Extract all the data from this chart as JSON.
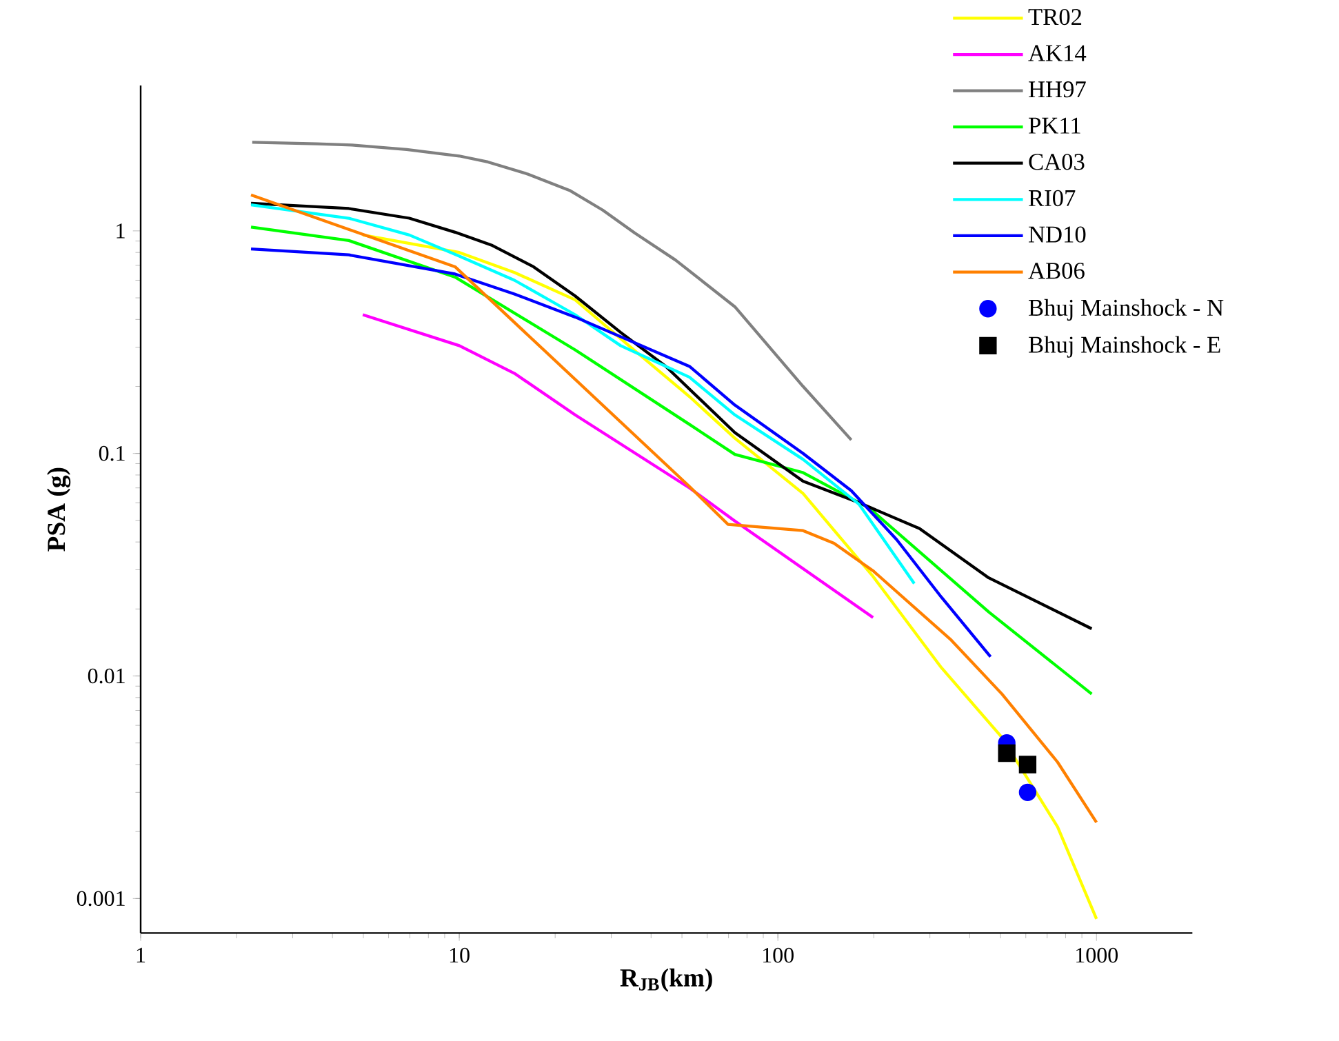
{
  "chart_data": {
    "type": "line",
    "xlabel": "R$_{JB}$(km)",
    "ylabel": "PSA (g)",
    "log": "xy",
    "xlim": [
      1,
      2000
    ],
    "ylim": [
      0.0007,
      4.5
    ],
    "xticks": [
      1,
      10,
      100,
      1000
    ],
    "yticks": [
      0.001,
      0.01,
      0.1,
      1
    ],
    "legend": "top right",
    "series": [
      {
        "name": "TR02",
        "color": "#ffff00",
        "x": [
          4.98,
          10,
          14.9,
          23.1,
          35.5,
          52.8,
          73.3,
          120,
          199,
          326,
          505,
          755,
          1000
        ],
        "values": [
          0.958,
          0.8,
          0.65,
          0.49,
          0.29,
          0.18,
          0.117,
          0.066,
          0.028,
          0.0109,
          0.0053,
          0.0021,
          0.00081
        ]
      },
      {
        "name": "AK14",
        "color": "#ff00ff",
        "x": [
          4.98,
          10,
          14.9,
          23.1,
          52.8,
          73.3,
          199
        ],
        "values": [
          0.42,
          0.305,
          0.229,
          0.149,
          0.07,
          0.0497,
          0.0183
        ]
      },
      {
        "name": "HH97",
        "color": "#808080",
        "x": [
          2.24,
          3.58,
          4.6,
          6.84,
          10,
          12.3,
          16.4,
          22.2,
          28.2,
          35.5,
          47.7,
          73.3,
          120,
          170
        ],
        "values": [
          2.5,
          2.46,
          2.43,
          2.32,
          2.17,
          2.04,
          1.8,
          1.52,
          1.24,
          0.98,
          0.74,
          0.456,
          0.2,
          0.115
        ]
      },
      {
        "name": "PK11",
        "color": "#00ff00",
        "x": [
          2.22,
          4.5,
          9.7,
          23.1,
          52.8,
          73.3,
          120,
          193,
          459,
          966
        ],
        "values": [
          1.04,
          0.905,
          0.62,
          0.292,
          0.135,
          0.099,
          0.082,
          0.057,
          0.0194,
          0.0083
        ]
      },
      {
        "name": "CA03",
        "color": "#000000",
        "x": [
          2.22,
          4.5,
          6.97,
          9.7,
          12.7,
          17.1,
          23.1,
          32.1,
          44.5,
          73.3,
          120,
          180,
          278,
          459,
          966
        ],
        "values": [
          1.33,
          1.26,
          1.14,
          0.986,
          0.86,
          0.69,
          0.51,
          0.35,
          0.246,
          0.124,
          0.075,
          0.06,
          0.046,
          0.0276,
          0.0163
        ]
      },
      {
        "name": "RI07",
        "color": "#00ffff",
        "x": [
          2.22,
          4.5,
          6.97,
          10,
          14.9,
          23.1,
          32.1,
          52.8,
          73.3,
          120,
          180,
          268
        ],
        "values": [
          1.31,
          1.14,
          0.958,
          0.77,
          0.6,
          0.42,
          0.305,
          0.22,
          0.149,
          0.094,
          0.059,
          0.026
        ]
      },
      {
        "name": "ND10",
        "color": "#0000ff",
        "x": [
          2.22,
          4.5,
          9.7,
          14.9,
          23.1,
          52.8,
          73.3,
          120,
          170,
          236,
          326,
          465
        ],
        "values": [
          0.83,
          0.78,
          0.64,
          0.52,
          0.41,
          0.246,
          0.165,
          0.1,
          0.068,
          0.041,
          0.0226,
          0.0122
        ]
      },
      {
        "name": "AB06",
        "color": "#ff8000",
        "x": [
          2.22,
          9.7,
          52.8,
          69.7,
          120,
          150,
          199,
          350,
          505,
          755,
          1000
        ],
        "values": [
          1.45,
          0.69,
          0.071,
          0.048,
          0.045,
          0.0395,
          0.0297,
          0.0145,
          0.0083,
          0.0041,
          0.0022
        ]
      },
      {
        "name": "Bhuj Mainshock - N",
        "type": "scatter",
        "marker": "circle",
        "color": "#0000ff",
        "x": [
          523,
          608
        ],
        "values": [
          0.005,
          0.003
        ]
      },
      {
        "name": "Bhuj Mainshock - E",
        "type": "scatter",
        "marker": "square",
        "color": "#000000",
        "x": [
          523,
          608
        ],
        "values": [
          0.0045,
          0.004
        ]
      }
    ]
  }
}
